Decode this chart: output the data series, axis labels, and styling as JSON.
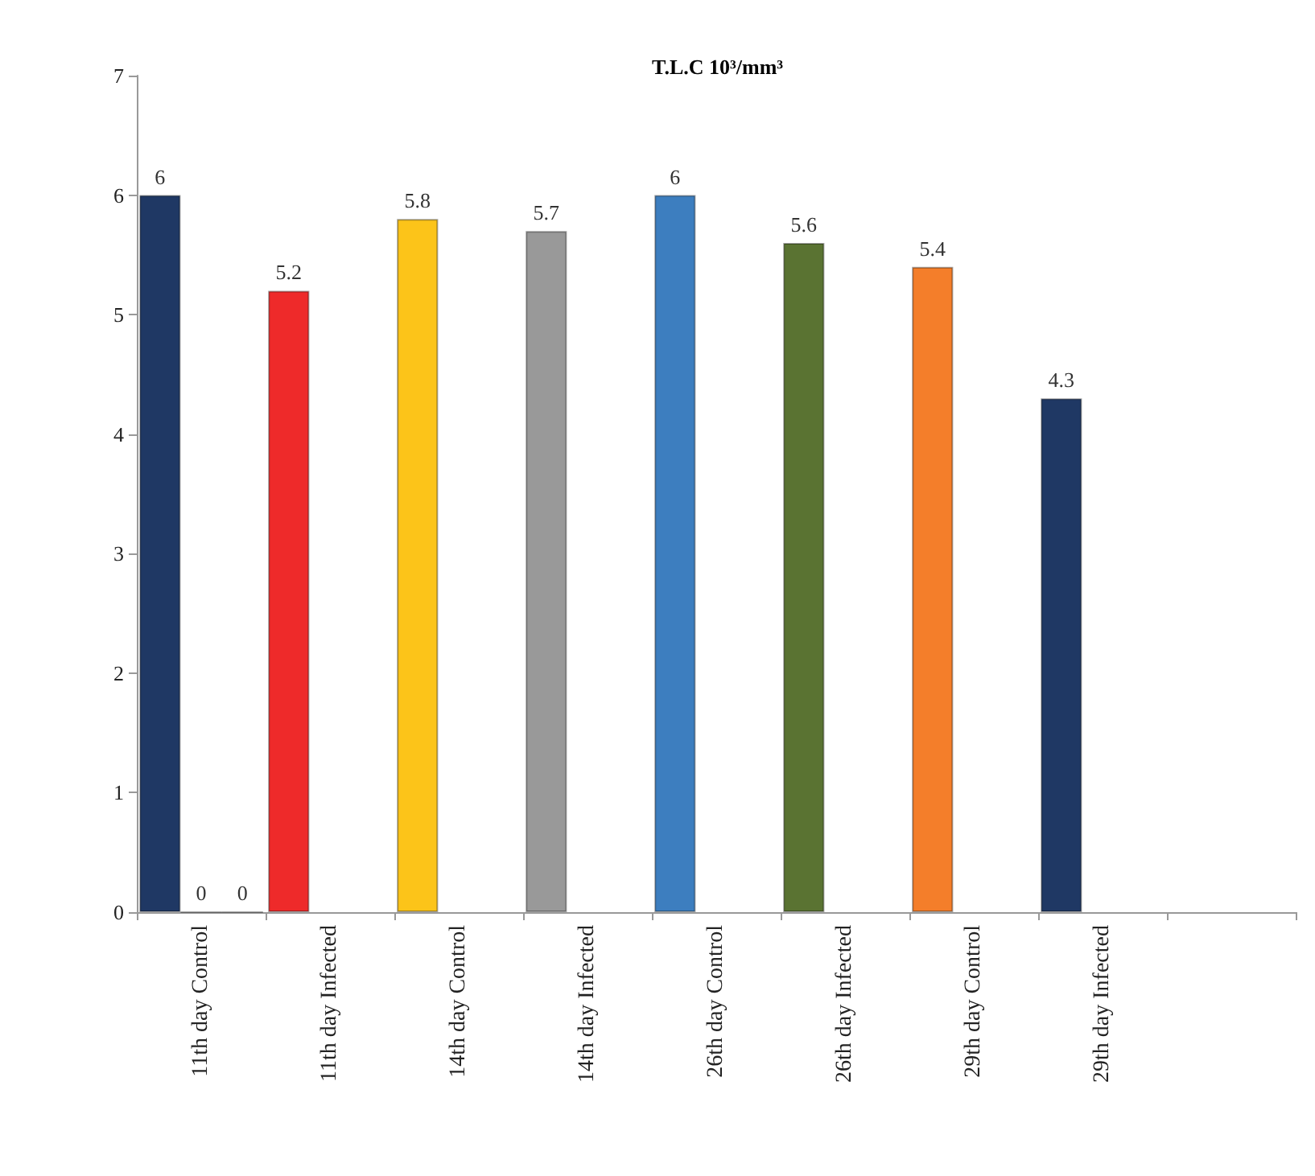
{
  "chart_data": {
    "type": "bar",
    "title": "T.L.C 10³/mm³",
    "categories": [
      "11th day Control",
      "11th day Infected",
      "14th day Control",
      "14th day Infected",
      "26th day Control",
      "26th day Infected",
      "29th day Control",
      "29th day Infected",
      null
    ],
    "series": [
      {
        "colors": [
          "#1f3864",
          "#ee2a2a",
          "#fcc419",
          "#999999",
          "#3d7ebf",
          "#5a7332",
          "#f47e2a",
          "#1f3864",
          null
        ],
        "values": [
          6,
          5.2,
          5.8,
          5.7,
          6,
          5.6,
          5.4,
          4.3,
          null
        ]
      },
      {
        "values": [
          0,
          null,
          null,
          null,
          null,
          null,
          null,
          null,
          null
        ]
      },
      {
        "values": [
          0,
          null,
          null,
          null,
          null,
          null,
          null,
          null,
          null
        ]
      }
    ],
    "ylim": [
      0,
      7
    ],
    "yticks": [
      0,
      1,
      2,
      3,
      4,
      5,
      6,
      7
    ],
    "data_labels": true
  }
}
